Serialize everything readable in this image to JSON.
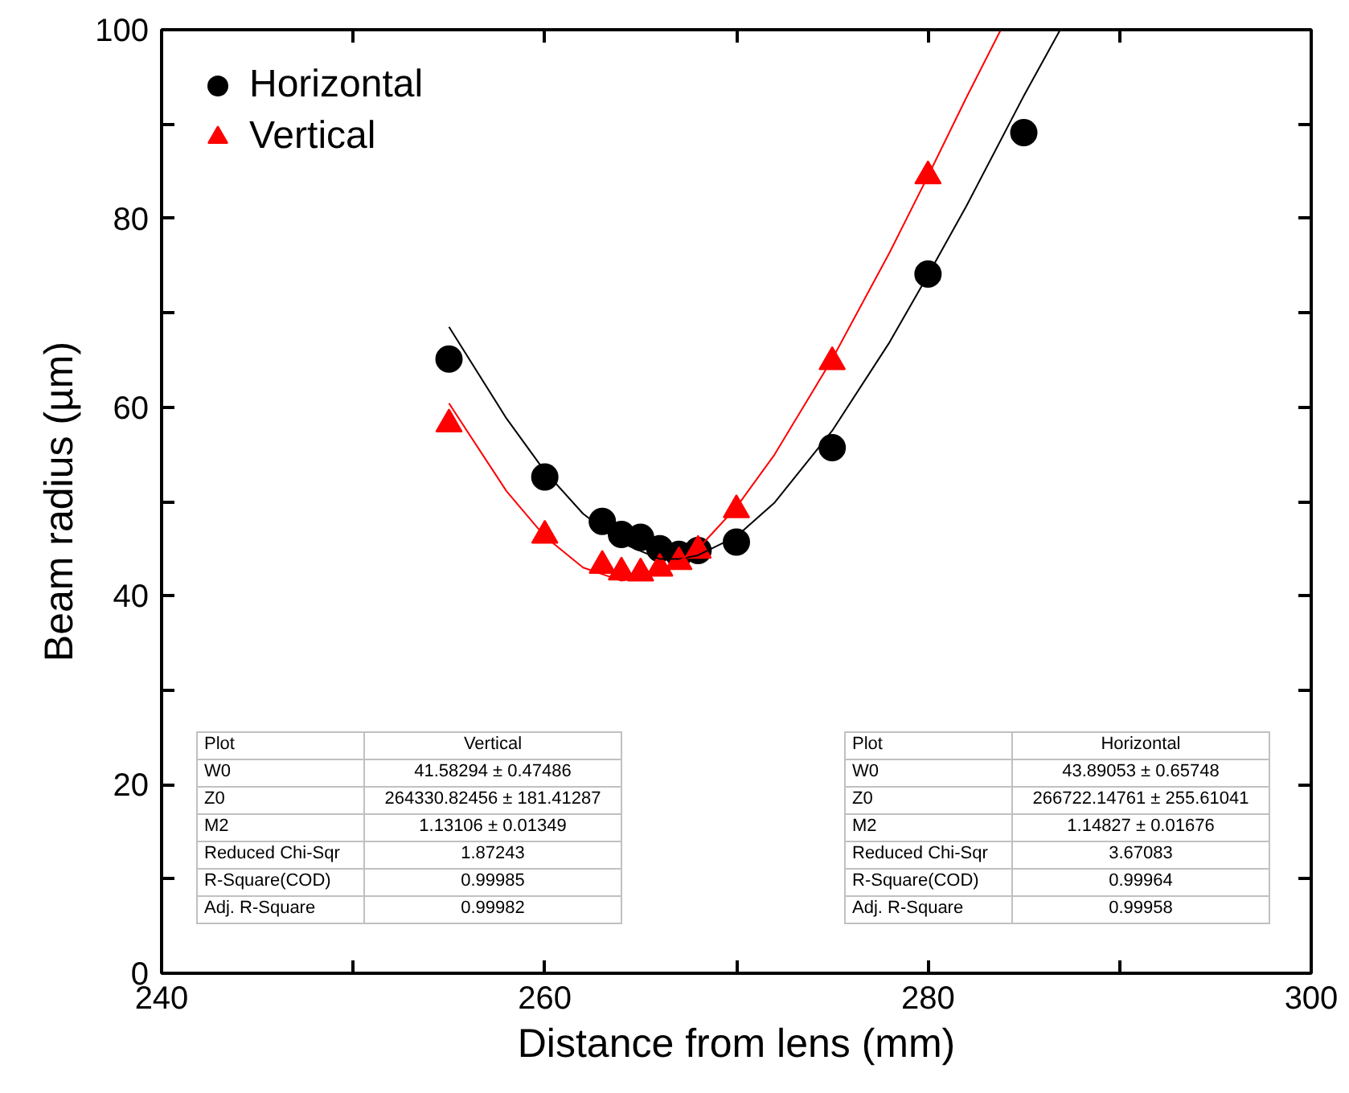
{
  "chart_data": {
    "type": "scatter",
    "xlabel": "Distance from lens (mm)",
    "ylabel": "Beam radius (µm)",
    "xlim": [
      240,
      300
    ],
    "xticks": [
      240,
      {
        "value": 250,
        "label": null
      },
      260,
      {
        "value": 270,
        "label": null
      },
      280,
      {
        "value": 290,
        "label": null
      },
      300
    ],
    "ylim": [
      0,
      100
    ],
    "yticks": [
      0,
      {
        "value": 10,
        "label": null
      },
      20,
      {
        "value": 30,
        "label": null
      },
      40,
      {
        "value": 50,
        "label": null
      },
      60,
      {
        "value": 70,
        "label": null
      },
      80,
      {
        "value": 90,
        "label": null
      },
      100
    ],
    "grid": false,
    "legend": "top left",
    "series": [
      {
        "name": "Horizontal",
        "color": "#000000",
        "marker": "circle",
        "x": [
          255,
          260,
          263,
          264,
          265,
          266,
          267,
          268,
          270,
          275,
          280,
          285
        ],
        "values": [
          65.1,
          52.6,
          47.9,
          46.5,
          46.2,
          45.0,
          44.4,
          44.8,
          45.7,
          55.7,
          74.1,
          89.1
        ]
      },
      {
        "name": "Vertical",
        "color": "#ff0000",
        "marker": "triangle",
        "x": [
          255,
          260,
          263,
          264,
          265,
          266,
          267,
          268,
          270,
          275,
          280
        ],
        "values": [
          58.2,
          46.4,
          43.2,
          42.5,
          42.4,
          42.9,
          43.6,
          44.8,
          49.1,
          64.8,
          84.5
        ]
      },
      {
        "type": "line",
        "color": "#000000",
        "x": [
          255,
          258,
          260,
          262,
          264,
          266,
          267,
          268,
          270,
          272,
          275,
          278,
          280,
          282,
          285,
          286.9
        ],
        "values": [
          68.5,
          58.8,
          53.2,
          48.7,
          45.6,
          43.9,
          43.9,
          44.3,
          46.3,
          49.9,
          57.5,
          66.9,
          74,
          81.3,
          93,
          100
        ]
      },
      {
        "type": "line",
        "color": "#ff0000",
        "x": [
          255,
          258,
          260,
          262,
          264,
          266,
          268,
          270,
          272,
          275,
          278,
          280,
          282,
          283.8
        ],
        "values": [
          60.4,
          51.1,
          46.3,
          43.0,
          41.6,
          42.3,
          45.0,
          49.4,
          55.0,
          65.1,
          76.4,
          84.5,
          92.8,
          100
        ]
      }
    ],
    "annotations": [
      "Plot",
      "Vertical",
      "W0",
      "41.58294 ± 0.47486",
      "Z0",
      "264330.82456 ± 181.41287",
      "M2",
      "1.13106 ± 0.01349",
      "Reduced Chi-Sqr",
      "1.87243",
      "R-Square(COD)",
      "0.99985",
      "Adj. R-Square",
      "0.99982",
      "Plot",
      "Horizontal",
      "W0",
      "43.89053 ± 0.65748",
      "Z0",
      "266722.14761 ± 255.61041",
      "M2",
      "1.14827 ± 0.01676",
      "Reduced Chi-Sqr",
      "3.67083",
      "R-Square(COD)",
      "0.99964",
      "Adj. R-Square",
      "0.99958"
    ]
  }
}
